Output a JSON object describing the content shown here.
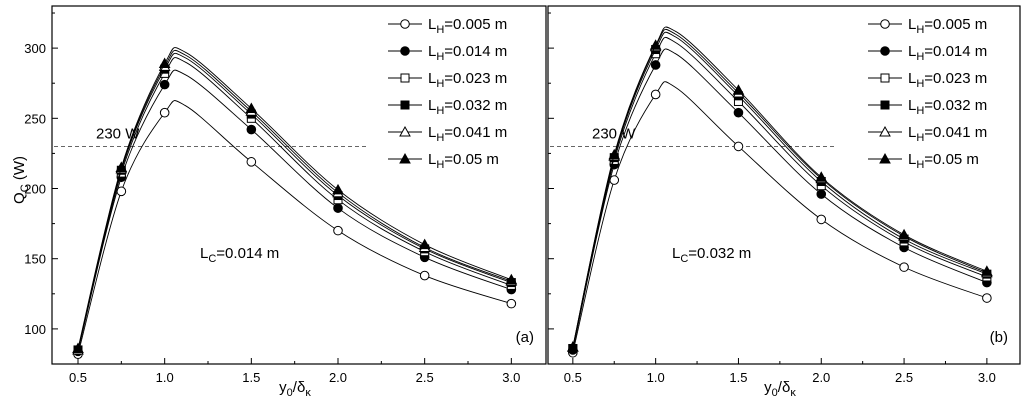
{
  "figure": {
    "y_axis_label_main": "Q",
    "y_axis_label_sub": "C",
    "y_axis_label_unit": " (W)",
    "x_axis_label_main": "y",
    "x_axis_label_sub1": "0",
    "x_axis_label_mid": "/δ",
    "x_axis_label_sub2": "κ"
  },
  "chart_data": [
    {
      "type": "line",
      "panel_label": "(a)",
      "annotation": {
        "main": "L",
        "sub": "C",
        "rest": "=0.014 m"
      },
      "reference_line": {
        "value": 230,
        "label": "230 W",
        "style": "dashed"
      },
      "xlim": [
        0.35,
        3.2
      ],
      "ylim": [
        75,
        330
      ],
      "x_ticks": [
        0.5,
        1.0,
        1.5,
        2.0,
        2.5,
        3.0
      ],
      "x_tick_labels": [
        "0.5",
        "1.0",
        "1.5",
        "2.0",
        "2.5",
        "3.0"
      ],
      "y_ticks": [
        100,
        150,
        200,
        250,
        300
      ],
      "y_tick_labels": [
        "100",
        "150",
        "200",
        "250",
        "300"
      ],
      "x": [
        0.5,
        0.75,
        1.0,
        1.5,
        2.0,
        2.5,
        3.0
      ],
      "series": [
        {
          "name": "LH=0.005 m",
          "label_main": "L",
          "label_sub": "H",
          "label_rest": "=0.005 m",
          "marker": "circle-open",
          "values": [
            82,
            198,
            254,
            219,
            170,
            138,
            118
          ],
          "peak": [
            1.12,
            259
          ]
        },
        {
          "name": "LH=0.014 m",
          "label_main": "L",
          "label_sub": "H",
          "label_rest": "=0.014 m",
          "marker": "circle-filled",
          "values": [
            84,
            208,
            274,
            242,
            186,
            151,
            128
          ],
          "peak": [
            1.12,
            281
          ]
        },
        {
          "name": "LH=0.023 m",
          "label_main": "L",
          "label_sub": "H",
          "label_rest": "=0.023 m",
          "marker": "square-open",
          "values": [
            85,
            211,
            282,
            250,
            192,
            155,
            131
          ],
          "peak": [
            1.12,
            290
          ]
        },
        {
          "name": "LH=0.032 m",
          "label_main": "L",
          "label_sub": "H",
          "label_rest": "=0.032 m",
          "marker": "square-filled",
          "values": [
            85,
            213,
            285,
            253,
            195,
            157,
            133
          ],
          "peak": [
            1.12,
            293
          ]
        },
        {
          "name": "LH=0.041 m",
          "label_main": "L",
          "label_sub": "H",
          "label_rest": "=0.041 m",
          "marker": "triangle-open",
          "values": [
            85,
            214,
            287,
            255,
            197,
            158,
            134
          ],
          "peak": [
            1.12,
            295
          ]
        },
        {
          "name": "LH=0.05 m",
          "label_main": "L",
          "label_sub": "H",
          "label_rest": "=0.05 m",
          "marker": "triangle-filled",
          "values": [
            86,
            215,
            289,
            257,
            199,
            160,
            135
          ],
          "peak": [
            1.12,
            297
          ]
        }
      ]
    },
    {
      "type": "line",
      "panel_label": "(b)",
      "annotation": {
        "main": "L",
        "sub": "C",
        "rest": "=0.032 m"
      },
      "reference_line": {
        "value": 230,
        "label": "230 W",
        "style": "dashed"
      },
      "xlim": [
        0.35,
        3.2
      ],
      "ylim": [
        75,
        330
      ],
      "x_ticks": [
        0.5,
        1.0,
        1.5,
        2.0,
        2.5,
        3.0
      ],
      "x_tick_labels": [
        "0.5",
        "1.0",
        "1.5",
        "2.0",
        "2.5",
        "3.0"
      ],
      "y_ticks": [
        100,
        150,
        200,
        250,
        300
      ],
      "y_tick_labels": [
        "100",
        "150",
        "200",
        "250",
        "300"
      ],
      "x": [
        0.5,
        0.75,
        1.0,
        1.5,
        2.0,
        2.5,
        3.0
      ],
      "series": [
        {
          "name": "LH=0.005 m",
          "label_main": "L",
          "label_sub": "H",
          "label_rest": "=0.005 m",
          "marker": "circle-open",
          "values": [
            83,
            206,
            267,
            230,
            178,
            144,
            122
          ],
          "peak": [
            1.12,
            272
          ]
        },
        {
          "name": "LH=0.014 m",
          "label_main": "L",
          "label_sub": "H",
          "label_rest": "=0.014 m",
          "marker": "circle-filled",
          "values": [
            85,
            217,
            288,
            254,
            196,
            158,
            133
          ],
          "peak": [
            1.12,
            296
          ]
        },
        {
          "name": "LH=0.023 m",
          "label_main": "L",
          "label_sub": "H",
          "label_rest": "=0.023 m",
          "marker": "square-open",
          "values": [
            86,
            220,
            296,
            262,
            202,
            162,
            137
          ],
          "peak": [
            1.12,
            304
          ]
        },
        {
          "name": "LH=0.032 m",
          "label_main": "L",
          "label_sub": "H",
          "label_rest": "=0.032 m",
          "marker": "square-filled",
          "values": [
            86,
            222,
            299,
            266,
            205,
            164,
            139
          ],
          "peak": [
            1.12,
            308
          ]
        },
        {
          "name": "LH=0.041 m",
          "label_main": "L",
          "label_sub": "H",
          "label_rest": "=0.041 m",
          "marker": "triangle-open",
          "values": [
            87,
            223,
            301,
            268,
            207,
            166,
            140
          ],
          "peak": [
            1.12,
            310
          ]
        },
        {
          "name": "LH=0.05 m",
          "label_main": "L",
          "label_sub": "H",
          "label_rest": "=0.05 m",
          "marker": "triangle-filled",
          "values": [
            87,
            224,
            302,
            270,
            208,
            167,
            141
          ],
          "peak": [
            1.12,
            312
          ]
        }
      ]
    }
  ]
}
